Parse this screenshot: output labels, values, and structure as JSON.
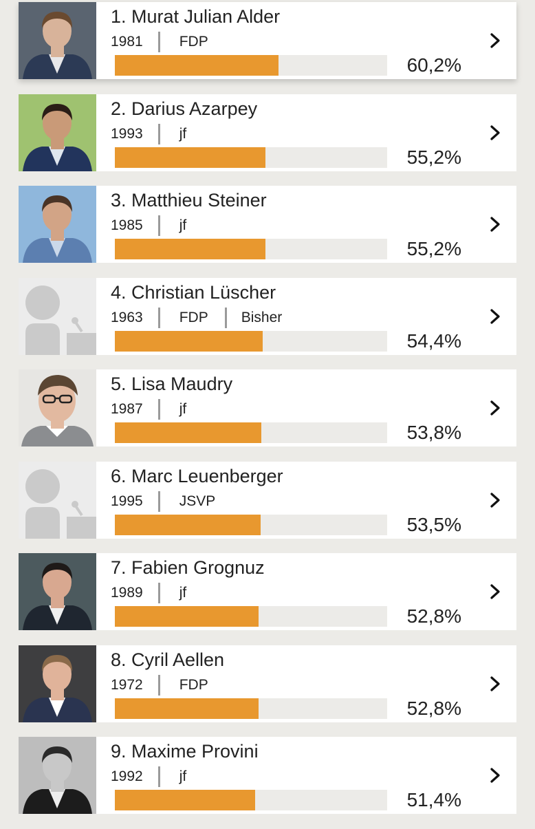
{
  "candidates": [
    {
      "name": "1. Murat Julian Alder",
      "year": "1981",
      "party": "FDP",
      "note": "",
      "percent": "60,2%",
      "share": 0.602,
      "photo": "photo-suit",
      "colors": {
        "bg": "#5a6470",
        "skin": "#d8b39a",
        "hair": "#6a4a30",
        "suit": "#2c3a55",
        "shirt": "#e8e8ea"
      }
    },
    {
      "name": "2. Darius Azarpey",
      "year": "1993",
      "party": "jf",
      "note": "",
      "percent": "55,2%",
      "share": 0.552,
      "photo": "photo-suit",
      "colors": {
        "bg": "#9fc270",
        "skin": "#c99a78",
        "hair": "#2a1d16",
        "suit": "#22345c",
        "shirt": "#dfe6ee"
      }
    },
    {
      "name": "3. Matthieu Steiner",
      "year": "1985",
      "party": "jf",
      "note": "",
      "percent": "55,2%",
      "share": 0.552,
      "photo": "photo-suit",
      "colors": {
        "bg": "#8fb7dc",
        "skin": "#d2a486",
        "hair": "#4a3426",
        "suit": "#5c7fb0",
        "shirt": "#cbd9ea"
      }
    },
    {
      "name": "4. Christian Lüscher",
      "year": "1963",
      "party": "FDP",
      "note": "Bisher",
      "percent": "54,4%",
      "share": 0.544,
      "photo": "placeholder-avatar",
      "colors": {
        "bg": "#ececec",
        "skin": "#cacaca",
        "hair": "#cacaca",
        "suit": "#cacaca",
        "shirt": "#cacaca"
      }
    },
    {
      "name": "5. Lisa Maudry",
      "year": "1987",
      "party": "jf",
      "note": "",
      "percent": "53,8%",
      "share": 0.538,
      "photo": "photo-sweater",
      "colors": {
        "bg": "#e7e6e3",
        "skin": "#e2b9a0",
        "hair": "#5b4633",
        "suit": "#8b8d90",
        "shirt": "#ffffff"
      }
    },
    {
      "name": "6. Marc Leuenberger",
      "year": "1995",
      "party": "JSVP",
      "note": "",
      "percent": "53,5%",
      "share": 0.535,
      "photo": "placeholder-avatar",
      "colors": {
        "bg": "#ececec",
        "skin": "#cacaca",
        "hair": "#cacaca",
        "suit": "#cacaca",
        "shirt": "#cacaca"
      }
    },
    {
      "name": "7. Fabien Grognuz",
      "year": "1989",
      "party": "jf",
      "note": "",
      "percent": "52,8%",
      "share": 0.528,
      "photo": "photo-suit",
      "colors": {
        "bg": "#4c5a5e",
        "skin": "#d8a890",
        "hair": "#1e1a18",
        "suit": "#1f2630",
        "shirt": "#f0f0f0"
      }
    },
    {
      "name": "8. Cyril Aellen",
      "year": "1972",
      "party": "FDP",
      "note": "",
      "percent": "52,8%",
      "share": 0.528,
      "photo": "photo-suit",
      "colors": {
        "bg": "#3e3e40",
        "skin": "#e0b39a",
        "hair": "#8a6a4a",
        "suit": "#2a3450",
        "shirt": "#ffffff"
      }
    },
    {
      "name": "9. Maxime Provini",
      "year": "1992",
      "party": "jf",
      "note": "",
      "percent": "51,4%",
      "share": 0.514,
      "photo": "photo-suit",
      "colors": {
        "bg": "#bdbdbd",
        "skin": "#c8c8c8",
        "hair": "#2a2a2a",
        "suit": "#1c1c1c",
        "shirt": "#eeeeee"
      }
    }
  ],
  "icons": {
    "chevron": "chevron-right-icon"
  },
  "colors": {
    "bar_fill": "#e8982f",
    "bar_track": "#ecebe8",
    "background": "#ecebe7"
  }
}
